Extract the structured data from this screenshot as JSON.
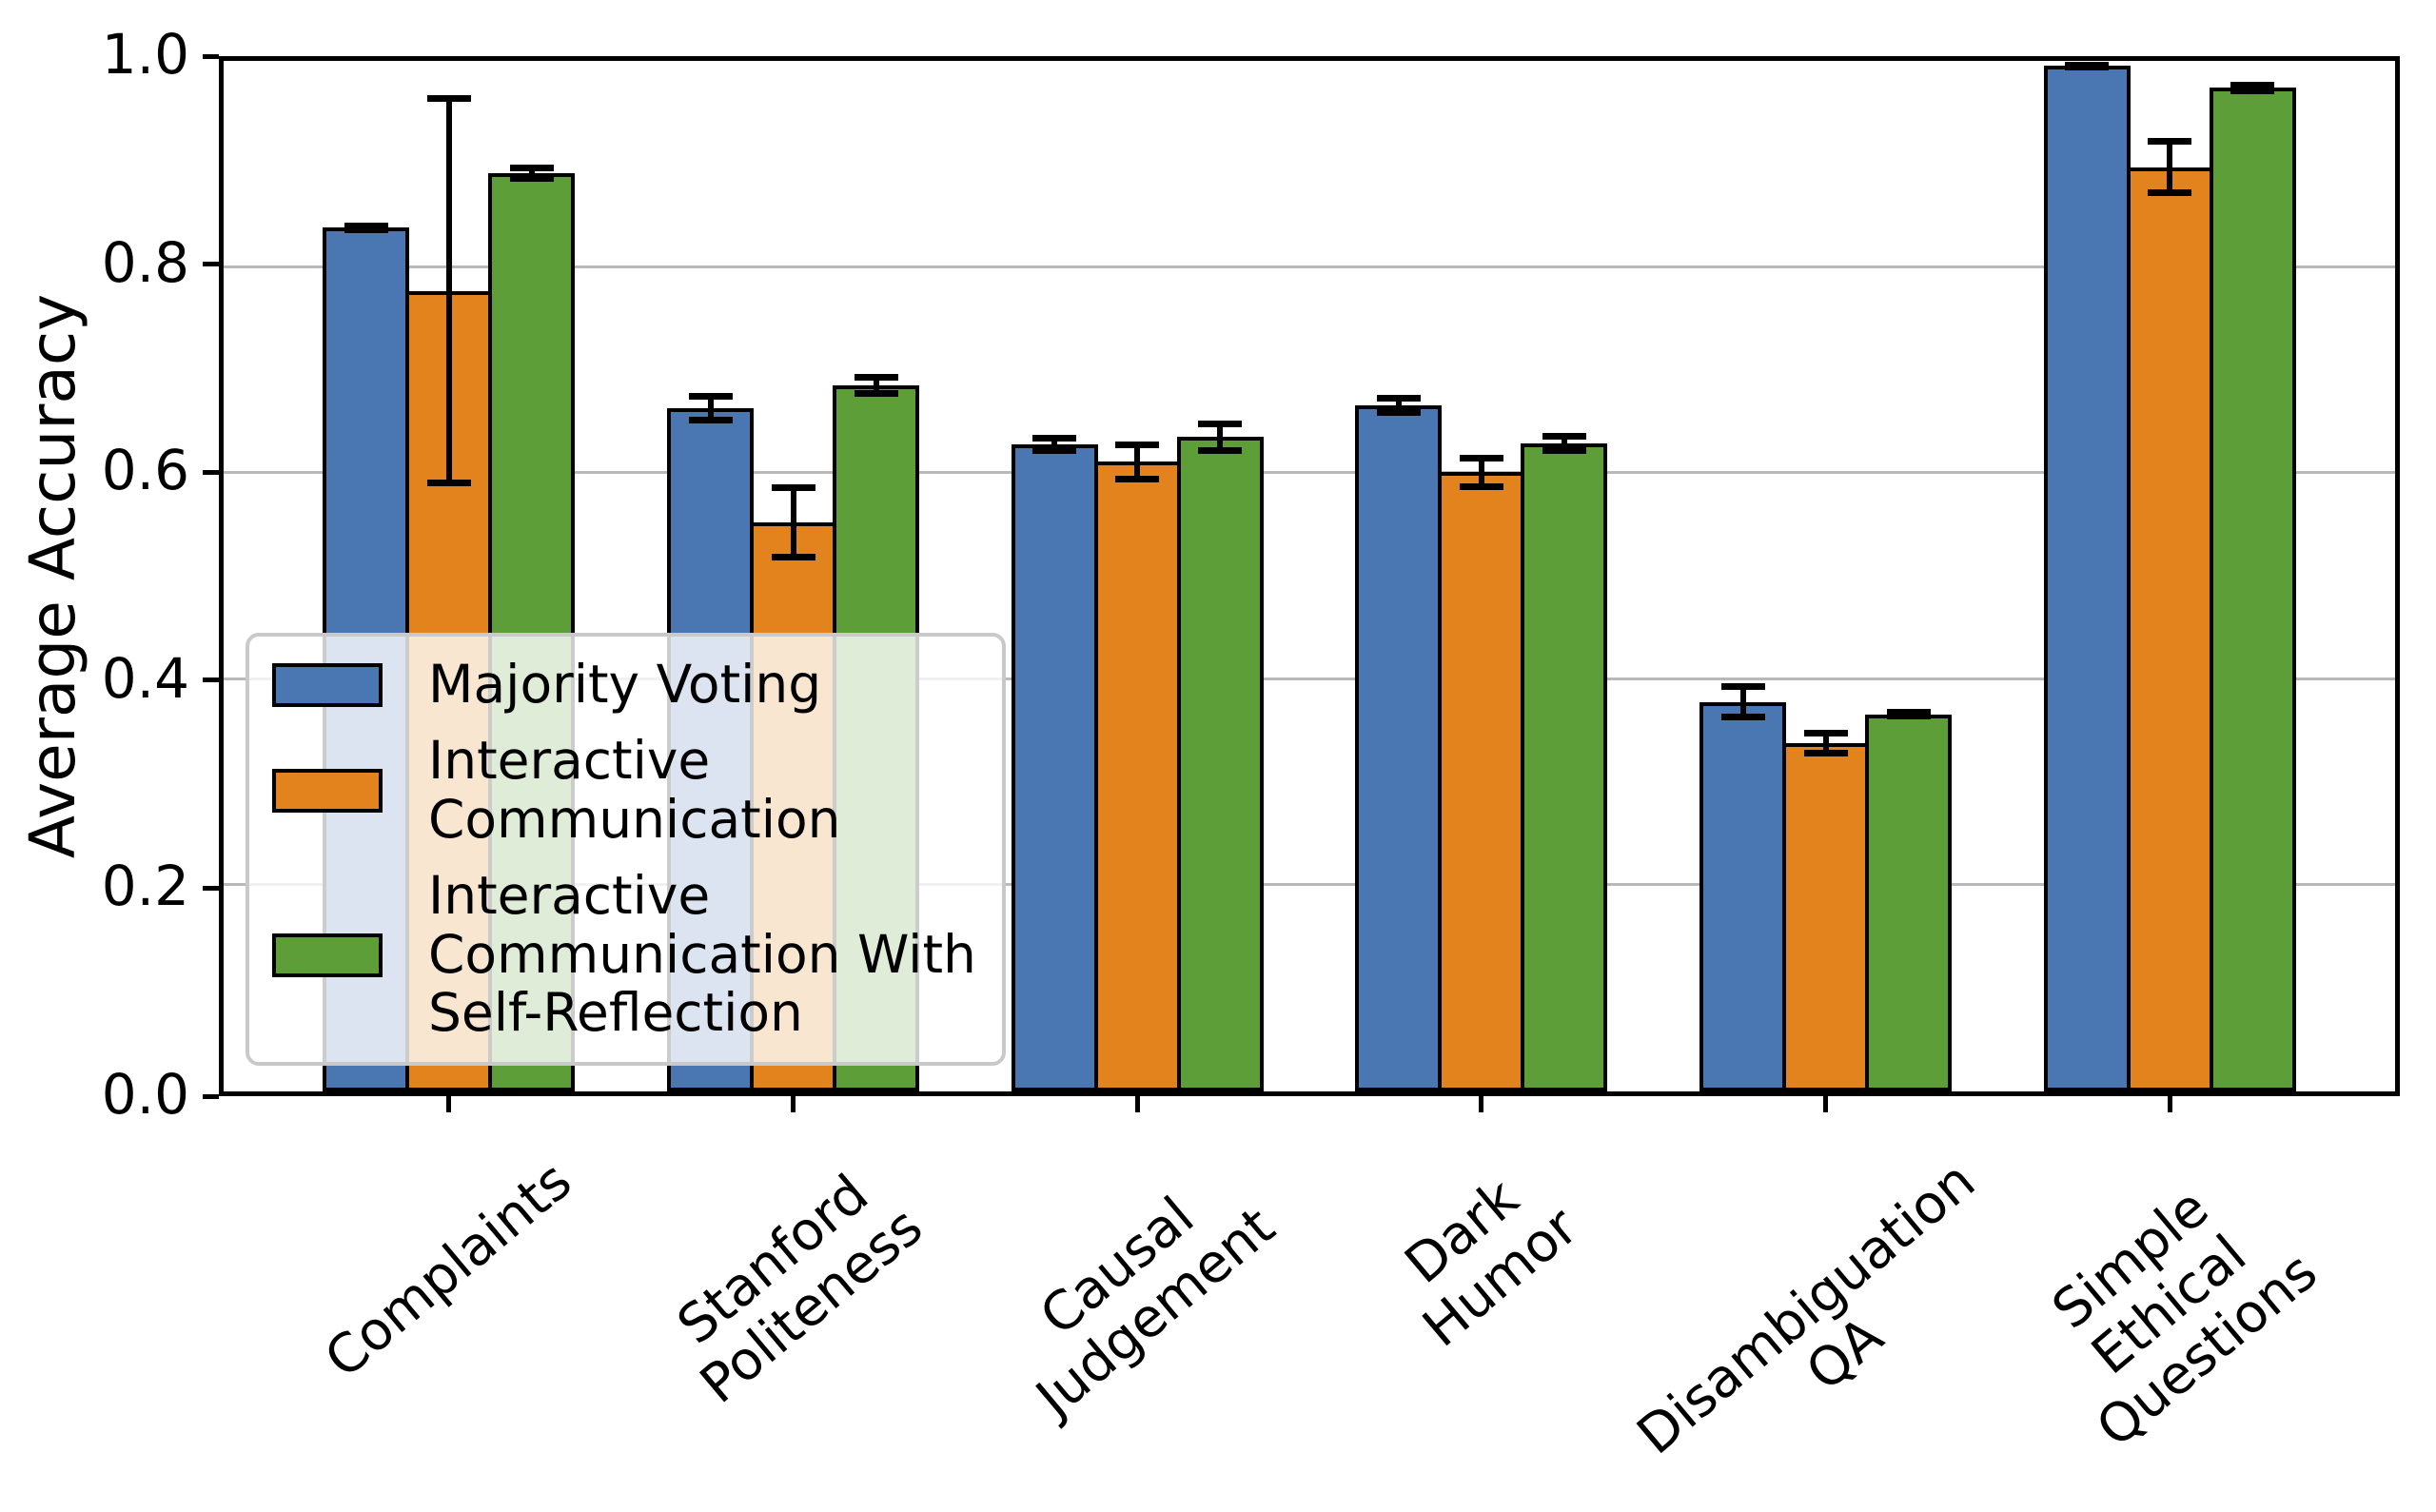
{
  "figure": {
    "background": "#ffffff"
  },
  "ylabel": "Average Accuracy",
  "colors": {
    "axis": "#000000",
    "grid": "#b9b9b9",
    "legend_border": "#c9c9c9"
  },
  "legend": {
    "items": [
      {
        "label": "Majority Voting",
        "color": "#4a77b2"
      },
      {
        "label": "Interactive\nCommunication",
        "color": "#e2831d"
      },
      {
        "label": "Interactive\nCommunication With\nSelf-Reflection",
        "color": "#5e9e38"
      }
    ]
  },
  "chart_data": {
    "type": "bar",
    "title": "",
    "xlabel": "",
    "ylabel": "Average Accuracy",
    "categories": [
      "Complaints",
      "Stanford\nPoliteness",
      "Causal\nJudgement",
      "Dark\nHumor",
      "Disambiguation\nQA",
      "Simple\nEthical\nQuestions"
    ],
    "series": [
      {
        "name": "Majority Voting",
        "color": "#4a77b2",
        "values": [
          0.838,
          0.663,
          0.628,
          0.666,
          0.378,
          0.995
        ],
        "errors": [
          0.005,
          0.015,
          0.009,
          0.01,
          0.018,
          0.004
        ]
      },
      {
        "name": "Interactive Communication",
        "color": "#e2831d",
        "values": [
          0.777,
          0.552,
          0.611,
          0.601,
          0.338,
          0.897
        ],
        "errors": [
          0.19,
          0.037,
          0.02,
          0.017,
          0.013,
          0.028
        ]
      },
      {
        "name": "Interactive Communication With Self-Reflection",
        "color": "#5e9e38",
        "values": [
          0.891,
          0.685,
          0.635,
          0.629,
          0.366,
          0.974
        ],
        "errors": [
          0.008,
          0.011,
          0.016,
          0.01,
          0.005,
          0.006
        ]
      }
    ],
    "ylim": [
      0.0,
      1.0
    ],
    "yticks": [
      "0.0",
      "0.2",
      "0.4",
      "0.6",
      "0.8",
      "1.0"
    ],
    "grid": "horizontal",
    "error_bars": true,
    "legend_position": "lower-left-inside"
  }
}
